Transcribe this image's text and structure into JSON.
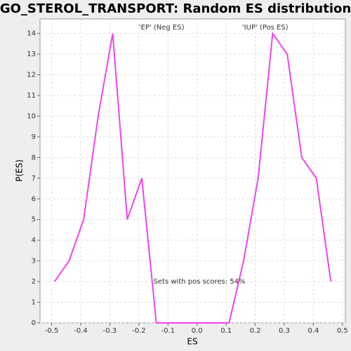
{
  "chart_data": {
    "type": "line",
    "title": "GO_STEROL_TRANSPORT: Random ES distribution",
    "x_label": "ES",
    "y_label": "P(ES)",
    "annotations": [
      {
        "text": "'EP' (Neg ES)",
        "x": -0.2,
        "y": 14.3,
        "color": "#3333ff"
      },
      {
        "text": "'IUP' (Pos ES)",
        "x": 0.155,
        "y": 14.3,
        "color": "#ff3333"
      },
      {
        "text": "Sets with pos scores: 54%",
        "x": -0.15,
        "y": 2
      }
    ],
    "x": [
      -0.49,
      -0.44,
      -0.39,
      -0.34,
      -0.29,
      -0.24,
      -0.19,
      -0.14,
      -0.09,
      -0.04,
      0.01,
      0.06,
      0.11,
      0.16,
      0.21,
      0.26,
      0.31,
      0.36,
      0.41,
      0.46
    ],
    "series": [
      {
        "color": "#ee44ee",
        "values": [
          2,
          3,
          5,
          10,
          14,
          5,
          7,
          0,
          0,
          0,
          0,
          0,
          0,
          3,
          7,
          14,
          13,
          8,
          7,
          2
        ]
      }
    ],
    "xlim": [
      -0.54,
      0.51
    ],
    "ylim": [
      0,
      14.7
    ],
    "xticks": [
      -0.5,
      -0.4,
      -0.3,
      -0.2,
      -0.1,
      {
        "value": 0,
        "label": "0.0"
      },
      0.1,
      0.2,
      0.3,
      0.4,
      0.5
    ],
    "yticks": [
      0,
      1,
      2,
      3,
      4,
      5,
      6,
      7,
      8,
      9,
      10,
      11,
      12,
      13,
      14
    ],
    "grid": true
  }
}
